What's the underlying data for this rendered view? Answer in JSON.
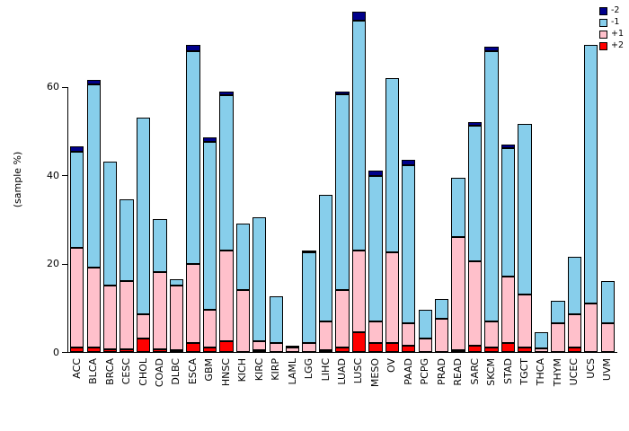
{
  "chart_data": {
    "type": "bar",
    "stacked": true,
    "title": "",
    "ylabel": "(sample %)",
    "xlabel": "",
    "yticks": [
      0,
      20,
      40,
      60
    ],
    "ylim": [
      0,
      78
    ],
    "grid": false,
    "legend_position": "top-right",
    "stack_order_bottom_to_top": [
      "+2",
      "+1",
      "-1",
      "-2"
    ],
    "categories": [
      "ACC",
      "BLCA",
      "BRCA",
      "CESC",
      "CHOL",
      "COAD",
      "DLBC",
      "ESCA",
      "GBM",
      "HNSC",
      "KICH",
      "KIRC",
      "KIRP",
      "LAML",
      "LGG",
      "LIHC",
      "LUAD",
      "LUSC",
      "MESO",
      "OV",
      "PAAD",
      "PCPG",
      "PRAD",
      "READ",
      "SARC",
      "SKCM",
      "STAD",
      "TGCT",
      "THCA",
      "THYM",
      "UCEC",
      "UCS",
      "UVM"
    ],
    "series": [
      {
        "name": "+2",
        "color": "#FF0000",
        "values": [
          1,
          1,
          0.7,
          0.7,
          3,
          0.7,
          0.5,
          2,
          1,
          2.5,
          0,
          0.5,
          0,
          0,
          0,
          0.5,
          1,
          4.5,
          2,
          2,
          1.5,
          0,
          0,
          0.5,
          1.5,
          1,
          2,
          1,
          0,
          0,
          1,
          0,
          0
        ]
      },
      {
        "name": "+1",
        "color": "#FFC0CB",
        "values": [
          22.5,
          18,
          14.3,
          15.3,
          5.5,
          17.3,
          14.5,
          18,
          8.5,
          20.5,
          14,
          2,
          2,
          1,
          2,
          6.5,
          13,
          18.5,
          5,
          20.5,
          5,
          3,
          7.5,
          25.5,
          19,
          6,
          15,
          12,
          0.8,
          6.5,
          7.5,
          11,
          6.5
        ]
      },
      {
        "name": "-1",
        "color": "#87CEEB",
        "values": [
          21.8,
          41.5,
          28,
          18.5,
          44.5,
          12,
          1.5,
          48,
          38,
          35,
          15,
          28,
          10.5,
          0.5,
          20.5,
          28.5,
          44.2,
          52,
          32.8,
          39.5,
          35.8,
          6.5,
          4.5,
          13.5,
          30.7,
          61,
          29.2,
          38.5,
          3.7,
          5,
          13,
          58.5,
          9.5
        ]
      },
      {
        "name": "-2",
        "color": "#00008B",
        "values": [
          1.2,
          1,
          0,
          0,
          0,
          0,
          0,
          1.5,
          1,
          1,
          0,
          0,
          0,
          0,
          0.5,
          0,
          0.8,
          2,
          1.2,
          0,
          1.2,
          0,
          0,
          0,
          0.8,
          1,
          0.8,
          0,
          0,
          0,
          0,
          0,
          0
        ]
      }
    ],
    "legend": [
      {
        "label": "-2",
        "color": "#00008B"
      },
      {
        "label": "-1",
        "color": "#87CEEB"
      },
      {
        "label": "+1",
        "color": "#FFC0CB"
      },
      {
        "label": "+2",
        "color": "#FF0000"
      }
    ]
  }
}
